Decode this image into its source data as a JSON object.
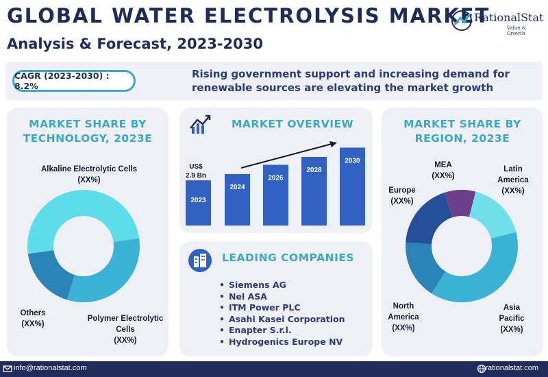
{
  "header": {
    "title": "GLOBAL WATER ELECTROLYSIS MARKET",
    "subtitle": "Analysis & Forecast, 2023-2030",
    "logo_name": "RationalStat",
    "logo_tagline": "Value & Growth"
  },
  "banner": {
    "cagr_label": "CAGR (2023-2030) : 8.2%",
    "text": "Rising government support and increasing demand for renewable sources are elevating the market growth"
  },
  "technology_panel": {
    "heading_line1": "MARKET SHARE BY",
    "heading_line2": "TECHNOLOGY, 2023E",
    "labels": {
      "alkaline_name": "Alkaline Electrolytic Cells",
      "alkaline_value": "(XX%)",
      "polymer_name_1": "Polymer Electrolytic",
      "polymer_name_2": "Cells",
      "polymer_value": "(XX%)",
      "others_name": "Others",
      "others_value": "(XX%)"
    }
  },
  "overview_panel": {
    "heading": "MARKET OVERVIEW",
    "start_value_line1": "US$",
    "start_value_line2": "2.9 Bn"
  },
  "companies_panel": {
    "heading": "LEADING COMPANIES",
    "items": [
      "Siemens AG",
      "Nel ASA",
      "ITM Power PLC",
      "Asahi Kasei Corporation",
      "Enapter S.r.l.",
      "Hydrogenics Europe NV"
    ]
  },
  "region_panel": {
    "heading_line1": "MARKET SHARE BY",
    "heading_line2": "REGION, 2023E",
    "labels": {
      "mea_name": "MEA",
      "mea_value": "(XX%)",
      "latin_name_1": "Latin",
      "latin_name_2": "America",
      "latin_value": "(XX%)",
      "europe_name": "Europe",
      "europe_value": "(XX%)",
      "north_name_1": "North",
      "north_name_2": "America",
      "north_value": "(XX%)",
      "asia_name_1": "Asia",
      "asia_name_2": "Pacific",
      "asia_value": "(XX%)"
    }
  },
  "footer": {
    "email": "info@rationalstat.com",
    "website": "rationalstat.com"
  },
  "colors": {
    "navy": "#1f2b5a",
    "teal": "#3aa9c8",
    "bar_blue": "#2f62c2",
    "panel_bg": "#eef0f5"
  },
  "chart_data": [
    {
      "type": "pie",
      "categories": [
        "Alkaline Electrolytic Cells",
        "Polymer Electrolytic Cells",
        "Others"
      ],
      "values": [
        50,
        32,
        18
      ],
      "colors": [
        "#5ddde9",
        "#3ab2d6",
        "#2a84b8"
      ]
    },
    {
      "type": "bar",
      "categories": [
        "2023",
        "2024",
        "2026",
        "2028",
        "2030"
      ],
      "values": [
        2.9,
        3.3,
        3.9,
        4.4,
        5.0
      ],
      "ylim": [
        0,
        5.5
      ],
      "color": "#2f62c2"
    },
    {
      "type": "pie",
      "categories": [
        "MEA",
        "Latin America",
        "Asia Pacific",
        "North America",
        "Europe"
      ],
      "values": [
        9,
        17,
        38,
        17,
        19
      ],
      "colors": [
        "#6c3f8c",
        "#6fe0ea",
        "#3ab2d6",
        "#2a84b8",
        "#264f9a"
      ]
    }
  ]
}
